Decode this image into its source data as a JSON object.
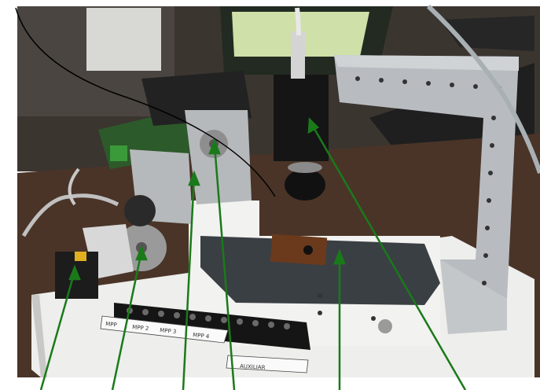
{
  "photo": {
    "subject_labels": {
      "mpp_segments": [
        "MPP",
        "MPP 2",
        "MPP 3",
        "MPP 4"
      ],
      "auxiliar": "AUXILIAR"
    },
    "callout_color": "#1a7a1a",
    "callout_count": 6
  }
}
